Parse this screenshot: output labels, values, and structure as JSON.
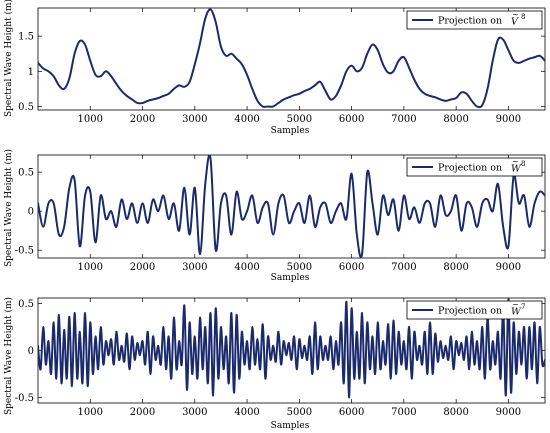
{
  "colors": {
    "series": "#1a2a6c",
    "axis": "#000000",
    "background": "#ffffff"
  },
  "chart_data": [
    {
      "type": "line",
      "xlabel": "Samples",
      "ylabel": "Spectral Wave Height (m)",
      "xlim": [
        0,
        9700
      ],
      "ylim": [
        0.45,
        1.9
      ],
      "xticks": [
        1000,
        2000,
        3000,
        4000,
        5000,
        6000,
        7000,
        8000,
        9000
      ],
      "yticks": [
        0.5,
        1,
        1.5
      ],
      "ytick_labels": [
        "0.5",
        "1",
        "1.5"
      ],
      "legend": {
        "text": "Projection on",
        "symbol": "V",
        "superscript": "8",
        "accent": "~",
        "position": "top-right"
      },
      "series": [
        {
          "name": "Projection on Ṽ8",
          "x": [
            0,
            100,
            200,
            300,
            400,
            500,
            600,
            700,
            800,
            900,
            1000,
            1100,
            1200,
            1300,
            1400,
            1500,
            1600,
            1700,
            1800,
            1900,
            2000,
            2100,
            2200,
            2300,
            2400,
            2500,
            2600,
            2700,
            2800,
            2900,
            3000,
            3100,
            3200,
            3300,
            3400,
            3500,
            3600,
            3700,
            3800,
            3900,
            4000,
            4100,
            4200,
            4300,
            4400,
            4500,
            4600,
            4700,
            4800,
            4900,
            5000,
            5100,
            5200,
            5300,
            5400,
            5500,
            5600,
            5700,
            5800,
            5900,
            6000,
            6100,
            6200,
            6300,
            6400,
            6500,
            6600,
            6700,
            6800,
            6900,
            7000,
            7100,
            7200,
            7300,
            7400,
            7500,
            7600,
            7700,
            7800,
            7900,
            8000,
            8100,
            8200,
            8300,
            8400,
            8500,
            8600,
            8700,
            8800,
            8900,
            9000,
            9100,
            9200,
            9300,
            9400,
            9500,
            9600,
            9700
          ],
          "y": [
            1.12,
            1.04,
            1.0,
            0.93,
            0.8,
            0.75,
            0.9,
            1.25,
            1.43,
            1.38,
            1.15,
            0.95,
            0.93,
            1.0,
            0.93,
            0.82,
            0.72,
            0.65,
            0.6,
            0.55,
            0.55,
            0.58,
            0.6,
            0.62,
            0.65,
            0.68,
            0.75,
            0.8,
            0.78,
            0.85,
            1.1,
            1.4,
            1.75,
            1.88,
            1.7,
            1.35,
            1.22,
            1.25,
            1.18,
            1.1,
            0.95,
            0.75,
            0.58,
            0.5,
            0.5,
            0.5,
            0.55,
            0.6,
            0.63,
            0.66,
            0.68,
            0.72,
            0.75,
            0.8,
            0.85,
            0.72,
            0.6,
            0.65,
            0.8,
            1.0,
            1.08,
            1.0,
            1.05,
            1.25,
            1.38,
            1.3,
            1.1,
            0.98,
            1.0,
            1.15,
            1.2,
            1.05,
            0.88,
            0.75,
            0.68,
            0.65,
            0.63,
            0.6,
            0.58,
            0.6,
            0.62,
            0.7,
            0.68,
            0.58,
            0.5,
            0.52,
            0.75,
            1.15,
            1.45,
            1.45,
            1.3,
            1.15,
            1.12,
            1.15,
            1.18,
            1.2,
            1.22,
            1.15
          ]
        }
      ]
    },
    {
      "type": "line",
      "xlabel": "Samples",
      "ylabel": "Spectral Wave Height (m)",
      "xlim": [
        0,
        9700
      ],
      "ylim": [
        -0.6,
        0.72
      ],
      "xticks": [
        1000,
        2000,
        3000,
        4000,
        5000,
        6000,
        7000,
        8000,
        9000
      ],
      "yticks": [
        -0.5,
        0,
        0.5
      ],
      "ytick_labels": [
        "-0.5",
        "0",
        "0.5"
      ],
      "legend": {
        "text": "Projection on",
        "symbol": "W",
        "superscript": "8",
        "accent": "~",
        "position": "top-right"
      },
      "series": [
        {
          "name": "Projection on W̃8",
          "x": [
            0,
            100,
            200,
            300,
            400,
            500,
            600,
            700,
            800,
            900,
            1000,
            1100,
            1200,
            1300,
            1400,
            1500,
            1600,
            1700,
            1800,
            1900,
            2000,
            2100,
            2200,
            2300,
            2400,
            2500,
            2600,
            2700,
            2800,
            2900,
            3000,
            3100,
            3200,
            3300,
            3400,
            3500,
            3600,
            3700,
            3800,
            3900,
            4000,
            4100,
            4200,
            4300,
            4400,
            4500,
            4600,
            4700,
            4800,
            4900,
            5000,
            5100,
            5200,
            5300,
            5400,
            5500,
            5600,
            5700,
            5800,
            5900,
            6000,
            6100,
            6200,
            6300,
            6400,
            6500,
            6600,
            6700,
            6800,
            6900,
            7000,
            7100,
            7200,
            7300,
            7400,
            7500,
            7600,
            7700,
            7800,
            7900,
            8000,
            8100,
            8200,
            8300,
            8400,
            8500,
            8600,
            8700,
            8800,
            8900,
            9000,
            9100,
            9200,
            9300,
            9400,
            9500,
            9600,
            9700
          ],
          "y": [
            0.1,
            -0.2,
            0.1,
            0.1,
            -0.3,
            -0.2,
            0.3,
            0.4,
            -0.45,
            0.2,
            0.25,
            -0.4,
            0.2,
            -0.1,
            0.0,
            -0.2,
            0.15,
            -0.1,
            0.1,
            -0.15,
            0.1,
            -0.15,
            0.15,
            0.0,
            0.2,
            -0.1,
            0.1,
            -0.25,
            0.3,
            -0.3,
            0.3,
            -0.55,
            0.35,
            0.68,
            -0.5,
            0.1,
            0.2,
            -0.3,
            0.25,
            -0.1,
            0.0,
            0.2,
            -0.15,
            0.05,
            0.1,
            -0.3,
            0.1,
            0.2,
            -0.15,
            0.0,
            0.1,
            -0.15,
            0.2,
            -0.2,
            0.05,
            0.1,
            -0.15,
            0.0,
            0.1,
            -0.1,
            0.48,
            -0.3,
            -0.55,
            0.5,
            0.1,
            -0.3,
            0.2,
            -0.05,
            0.15,
            -0.25,
            0.2,
            -0.1,
            0.05,
            -0.15,
            0.1,
            0.1,
            -0.2,
            0.2,
            -0.05,
            0.0,
            0.2,
            -0.25,
            0.1,
            0.05,
            -0.2,
            0.1,
            0.15,
            0.0,
            0.35,
            -0.2,
            -0.45,
            0.45,
            0.1,
            0.2,
            -0.2,
            0.1,
            0.25,
            0.2
          ]
        }
      ]
    },
    {
      "type": "line",
      "xlabel": "Samples",
      "ylabel": "Spectral Wave Height (m)",
      "xlim": [
        0,
        9700
      ],
      "ylim": [
        -0.56,
        0.56
      ],
      "xticks": [
        1000,
        2000,
        3000,
        4000,
        5000,
        6000,
        7000,
        8000,
        9000
      ],
      "yticks": [
        -0.5,
        0,
        0.5
      ],
      "ytick_labels": [
        "-0.5",
        "0",
        "0.5"
      ],
      "legend": {
        "text": "Projection on",
        "symbol": "W",
        "superscript": "7",
        "accent": "~",
        "position": "top-right"
      },
      "series": [
        {
          "name": "Projection on W̃7",
          "x": [
            0,
            50,
            100,
            150,
            200,
            250,
            300,
            350,
            400,
            450,
            500,
            550,
            600,
            650,
            700,
            750,
            800,
            850,
            900,
            950,
            1000,
            1050,
            1100,
            1150,
            1200,
            1250,
            1300,
            1350,
            1400,
            1450,
            1500,
            1550,
            1600,
            1650,
            1700,
            1750,
            1800,
            1850,
            1900,
            1950,
            2000,
            2050,
            2100,
            2150,
            2200,
            2250,
            2300,
            2350,
            2400,
            2450,
            2500,
            2550,
            2600,
            2650,
            2700,
            2750,
            2800,
            2850,
            2900,
            2950,
            3000,
            3050,
            3100,
            3150,
            3200,
            3250,
            3300,
            3350,
            3400,
            3450,
            3500,
            3550,
            3600,
            3650,
            3700,
            3750,
            3800,
            3850,
            3900,
            3950,
            4000,
            4050,
            4100,
            4150,
            4200,
            4250,
            4300,
            4350,
            4400,
            4450,
            4500,
            4550,
            4600,
            4650,
            4700,
            4750,
            4800,
            4850,
            4900,
            4950,
            5000,
            5050,
            5100,
            5150,
            5200,
            5250,
            5300,
            5350,
            5400,
            5450,
            5500,
            5550,
            5600,
            5650,
            5700,
            5750,
            5800,
            5850,
            5900,
            5950,
            6000,
            6050,
            6100,
            6150,
            6200,
            6250,
            6300,
            6350,
            6400,
            6450,
            6500,
            6550,
            6600,
            6650,
            6700,
            6750,
            6800,
            6850,
            6900,
            6950,
            7000,
            7050,
            7100,
            7150,
            7200,
            7250,
            7300,
            7350,
            7400,
            7450,
            7500,
            7550,
            7600,
            7650,
            7700,
            7750,
            7800,
            7850,
            7900,
            7950,
            8000,
            8050,
            8100,
            8150,
            8200,
            8250,
            8300,
            8350,
            8400,
            8450,
            8500,
            8550,
            8600,
            8650,
            8700,
            8750,
            8800,
            8850,
            8900,
            8950,
            9000,
            9050,
            9100,
            9150,
            9200,
            9250,
            9300,
            9350,
            9400,
            9450,
            9500,
            9550,
            9600,
            9650,
            9700
          ],
          "y": [
            0.05,
            -0.2,
            0.25,
            -0.15,
            0.1,
            -0.25,
            0.3,
            -0.3,
            0.38,
            -0.35,
            0.22,
            -0.3,
            0.36,
            -0.38,
            0.4,
            -0.3,
            0.2,
            -0.35,
            0.4,
            -0.38,
            0.3,
            -0.25,
            0.15,
            -0.2,
            0.25,
            -0.15,
            0.1,
            -0.05,
            0.12,
            -0.15,
            0.2,
            -0.1,
            0.05,
            -0.12,
            0.18,
            -0.2,
            0.15,
            -0.1,
            0.08,
            -0.05,
            0.1,
            -0.15,
            0.2,
            -0.25,
            0.15,
            -0.1,
            0.05,
            -0.15,
            0.25,
            -0.2,
            0.15,
            -0.3,
            0.35,
            -0.2,
            0.1,
            -0.15,
            0.48,
            -0.42,
            0.3,
            -0.25,
            0.15,
            -0.3,
            0.35,
            -0.2,
            0.25,
            -0.35,
            0.4,
            -0.48,
            0.45,
            -0.3,
            0.25,
            -0.2,
            0.15,
            -0.35,
            0.4,
            -0.45,
            0.38,
            -0.3,
            0.2,
            -0.15,
            0.1,
            -0.2,
            0.25,
            -0.15,
            0.12,
            -0.2,
            0.28,
            -0.3,
            0.15,
            -0.1,
            0.05,
            -0.12,
            0.2,
            -0.15,
            0.1,
            -0.05,
            0.08,
            -0.1,
            0.15,
            -0.2,
            0.12,
            -0.08,
            0.05,
            -0.1,
            0.15,
            -0.25,
            0.3,
            -0.2,
            0.15,
            -0.1,
            0.05,
            -0.1,
            0.15,
            -0.2,
            0.1,
            -0.15,
            0.3,
            -0.35,
            0.52,
            -0.5,
            0.45,
            -0.3,
            0.2,
            -0.3,
            0.4,
            -0.35,
            0.3,
            -0.2,
            0.15,
            -0.25,
            0.3,
            -0.2,
            0.1,
            -0.15,
            0.28,
            -0.3,
            0.32,
            -0.25,
            0.2,
            -0.15,
            0.1,
            -0.2,
            0.25,
            -0.3,
            0.2,
            -0.1,
            0.05,
            -0.15,
            0.2,
            -0.25,
            0.3,
            -0.25,
            0.18,
            -0.12,
            0.1,
            -0.08,
            0.05,
            -0.1,
            0.15,
            -0.2,
            0.1,
            -0.05,
            0.08,
            -0.1,
            0.15,
            -0.2,
            0.2,
            -0.15,
            0.1,
            -0.2,
            0.25,
            -0.3,
            0.35,
            -0.2,
            0.1,
            -0.15,
            0.2,
            -0.3,
            0.45,
            -0.48,
            0.55,
            -0.45,
            0.3,
            -0.25,
            0.2,
            -0.15,
            0.25,
            -0.3,
            0.25,
            -0.2,
            0.3,
            -0.35,
            0.25,
            -0.15,
            -0.1
          ]
        }
      ]
    }
  ]
}
